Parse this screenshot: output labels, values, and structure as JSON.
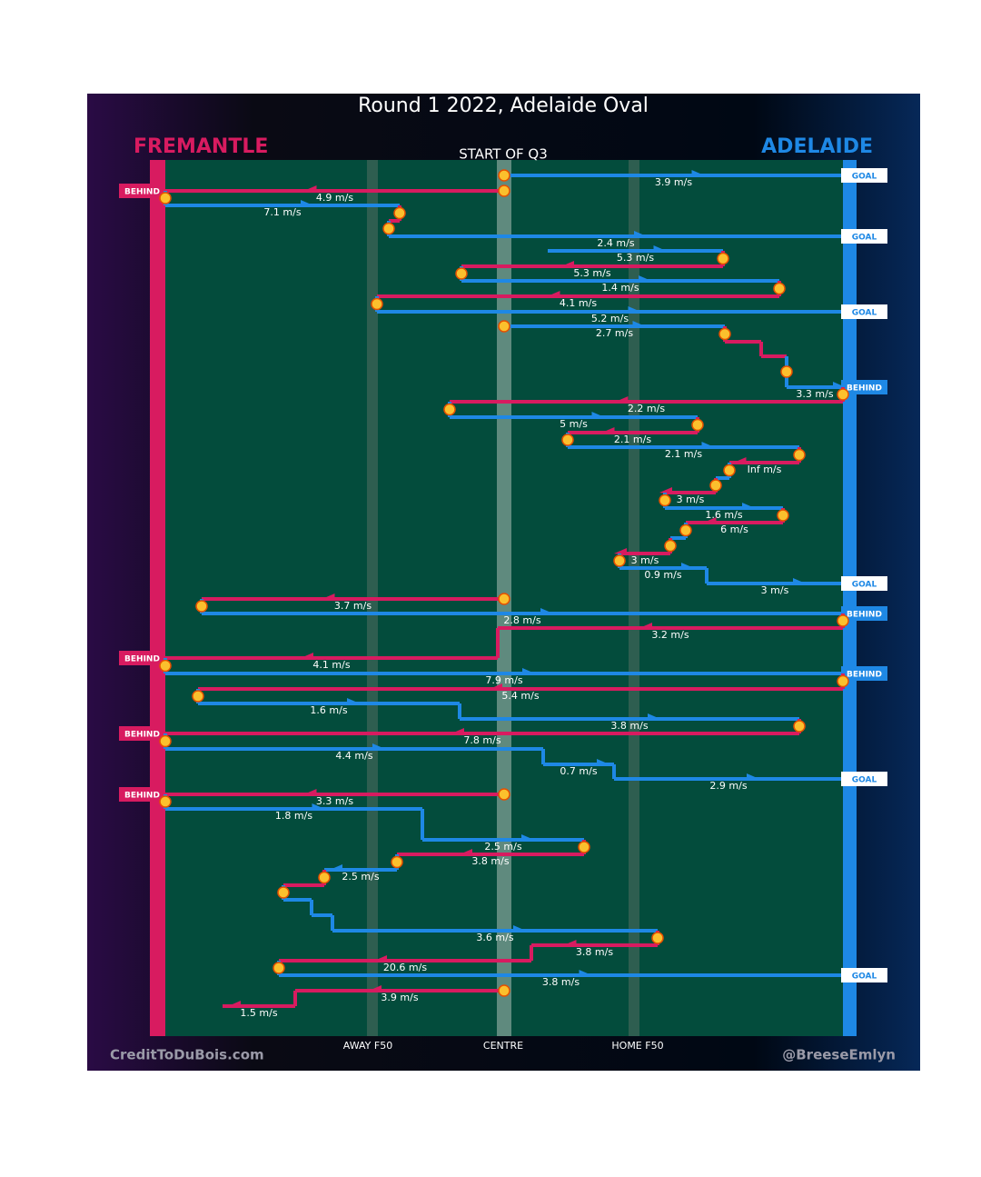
{
  "title": "Round 1 2022, Adelaide Oval",
  "teams": {
    "home": "FREMANTLE",
    "away": "ADELAIDE"
  },
  "start_label": "START OF Q3",
  "zones": [
    "AWAY F50",
    "CENTRE",
    "HOME F50"
  ],
  "credits": {
    "left": "CreditToDuBois.com",
    "right": "@BreeseEmlyn"
  },
  "speeds": [
    "3.9 m/s",
    "4.9 m/s",
    "7.1 m/s",
    "2.4 m/s",
    "5.3 m/s",
    "5.3 m/s",
    "1.4 m/s",
    "4.1 m/s",
    "5.2 m/s",
    "2.7 m/s",
    "3.3 m/s",
    "2.2 m/s",
    "5 m/s",
    "2.1 m/s",
    "2.1 m/s",
    "Inf m/s",
    "3 m/s",
    "1.6 m/s",
    "6 m/s",
    "3 m/s",
    "0.9 m/s",
    "3 m/s",
    "3.7 m/s",
    "2.8 m/s",
    "3.2 m/s",
    "4.1 m/s",
    "7.9 m/s",
    "5.4 m/s",
    "1.6 m/s",
    "3.8 m/s",
    "7.8 m/s",
    "4.4 m/s",
    "0.7 m/s",
    "2.9 m/s",
    "3.3 m/s",
    "1.8 m/s",
    "2.5 m/s",
    "3.8 m/s",
    "2.5 m/s",
    "3.6 m/s",
    "3.8 m/s",
    "20.6 m/s",
    "3.8 m/s",
    "3.9 m/s",
    "1.5 m/s"
  ],
  "outcomes": [
    "GOAL",
    "BEHIND",
    "GOAL",
    "GOAL",
    "BEHIND",
    "GOAL",
    "BEHIND",
    "BEHIND",
    "BEHIND",
    "BEHIND",
    "GOAL",
    "BEHIND",
    "GOAL"
  ]
}
